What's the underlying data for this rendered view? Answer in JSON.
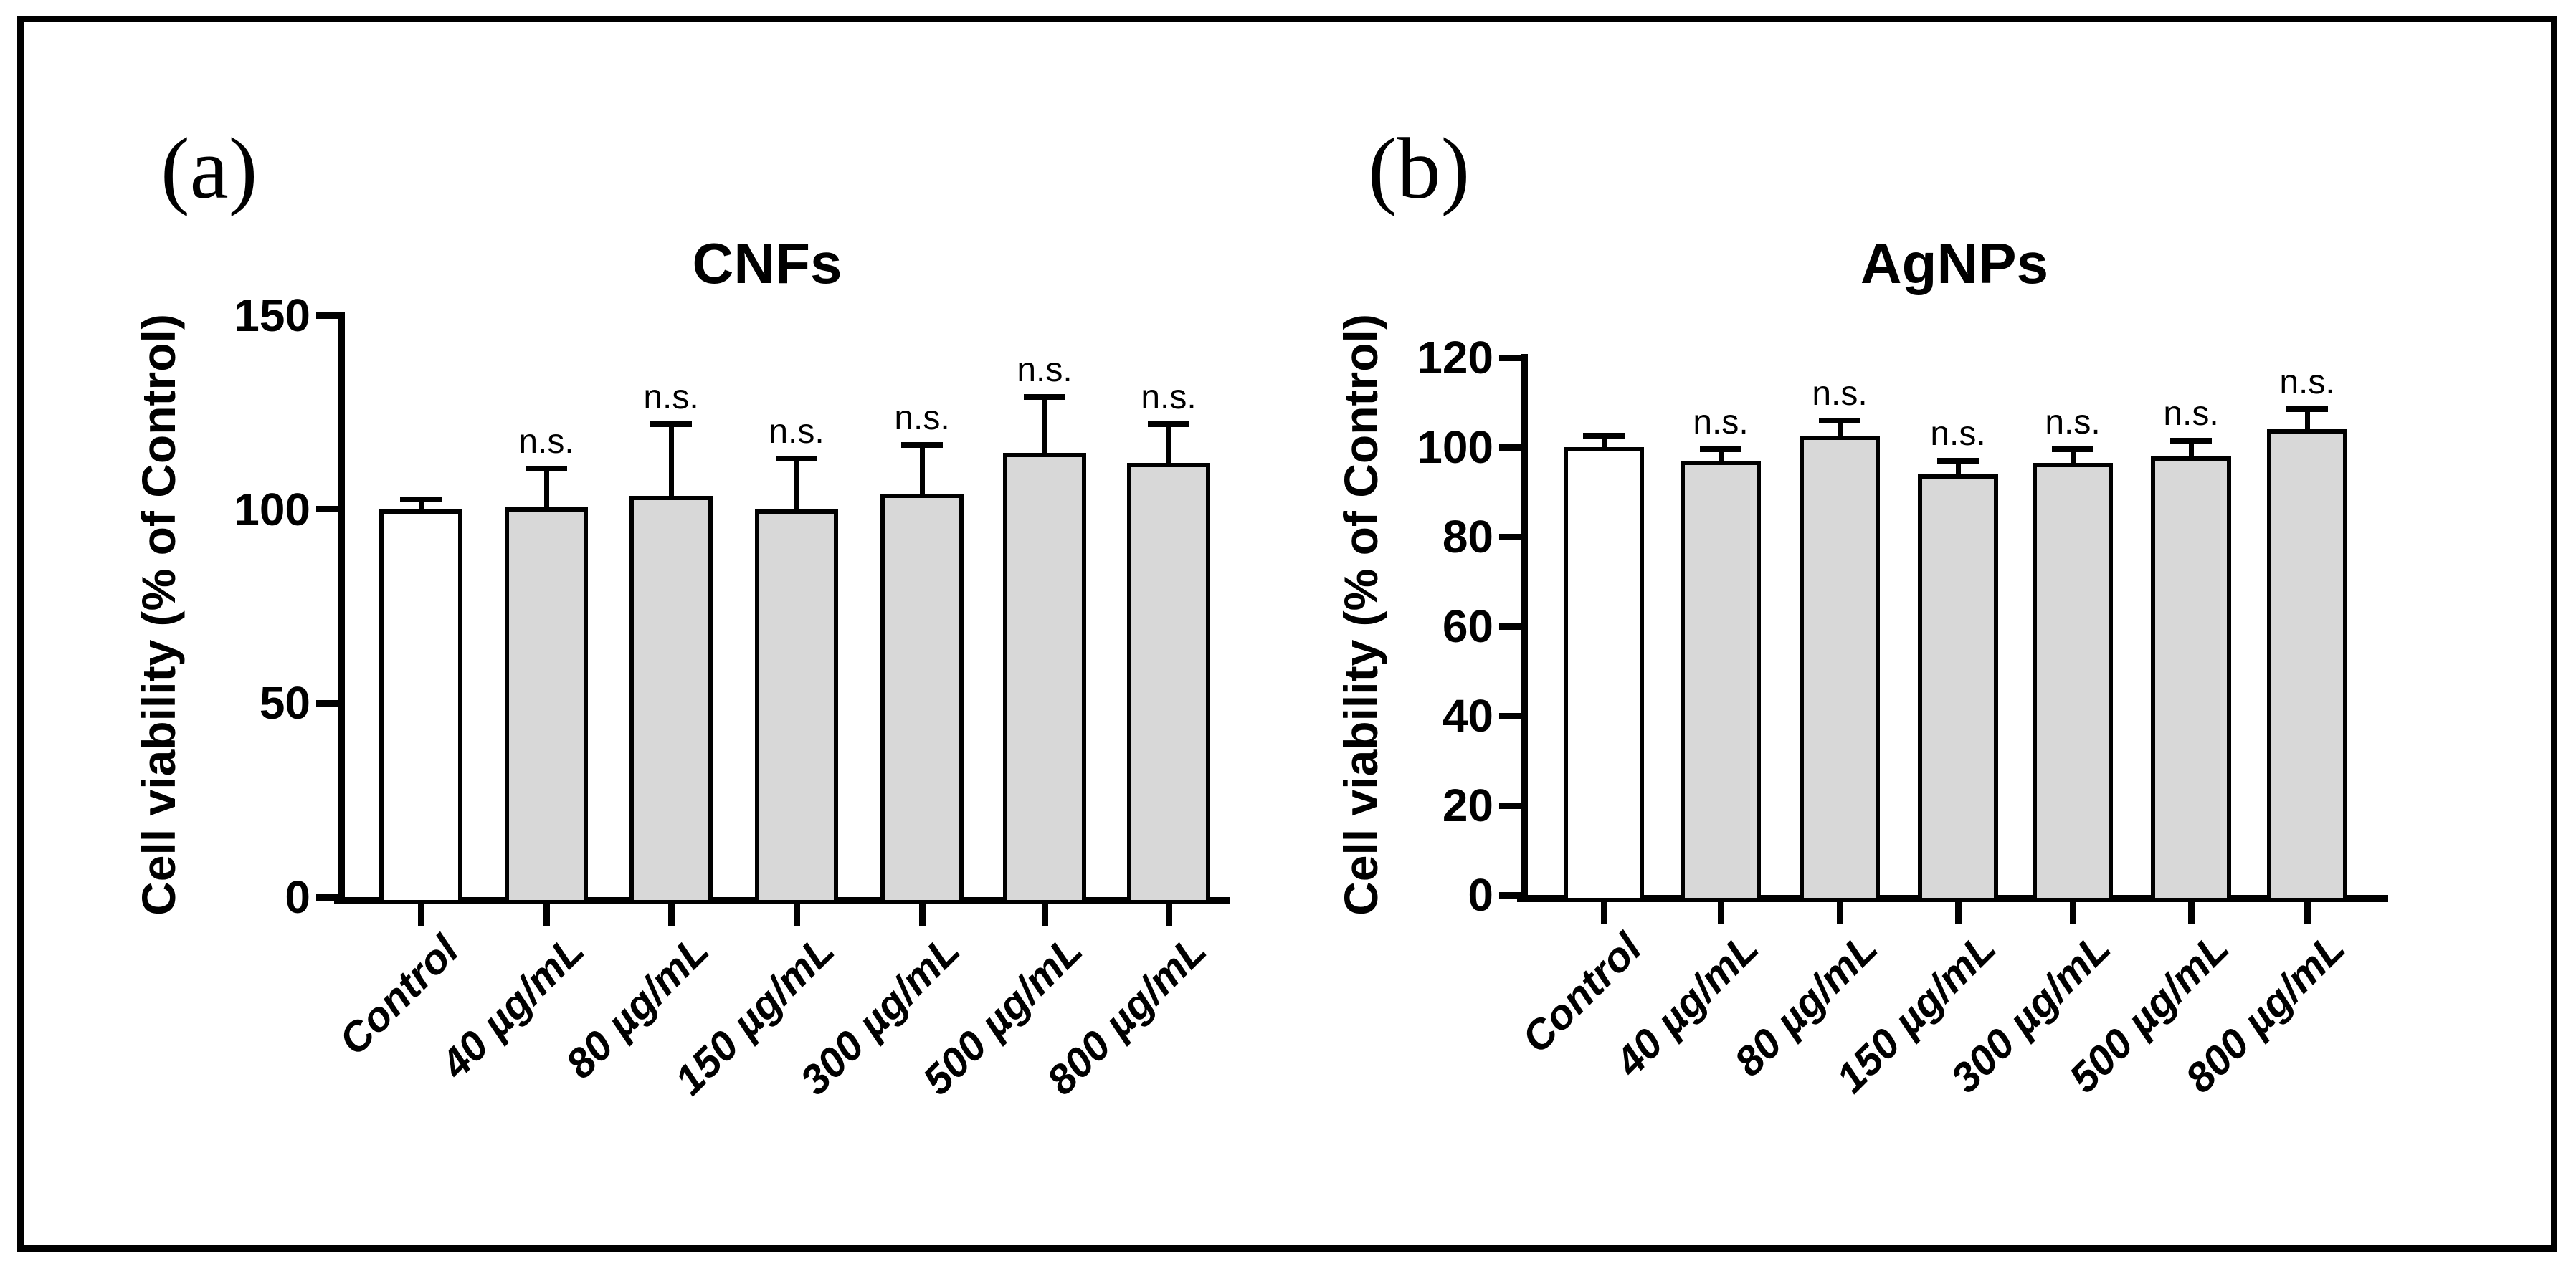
{
  "figure": {
    "background": "#ffffff",
    "border_color": "#000000",
    "ink_color": "#000000"
  },
  "chart_data": [
    {
      "type": "bar",
      "panel_label": "(a)",
      "title": "CNFs",
      "ylabel": "Cell viability (% of Control)",
      "xlabel": "",
      "categories": [
        "Control",
        "40 µg/mL",
        "80 µg/mL",
        "150 µg/mL",
        "300 µg/mL",
        "500 µg/mL",
        "800 µg/mL"
      ],
      "values": [
        100,
        100.5,
        103.5,
        100,
        104,
        114.5,
        112
      ],
      "errors_plus": [
        2.5,
        10,
        18.5,
        13,
        12.5,
        14.5,
        10
      ],
      "annotations": [
        "",
        "n.s.",
        "n.s.",
        "n.s.",
        "n.s.",
        "n.s.",
        "n.s."
      ],
      "yticks": [
        0,
        50,
        100,
        150
      ],
      "ylim": [
        0,
        150
      ],
      "grid": false,
      "legend": "none",
      "bar_fills": [
        "#ffffff",
        "#d8d8d8",
        "#d8d8d8",
        "#d8d8d8",
        "#d8d8d8",
        "#d8d8d8",
        "#d8d8d8"
      ],
      "bar_edge_color": "#000000"
    },
    {
      "type": "bar",
      "panel_label": "(b)",
      "title": "AgNPs",
      "ylabel": "Cell viability (% of Control)",
      "xlabel": "",
      "categories": [
        "Control",
        "40 µg/mL",
        "80 µg/mL",
        "150 µg/mL",
        "300 µg/mL",
        "500 µg/mL",
        "800 µg/mL"
      ],
      "values": [
        100,
        97,
        102.5,
        94,
        96.5,
        98,
        104
      ],
      "errors_plus": [
        2.5,
        2.5,
        3.5,
        3,
        3,
        3.5,
        4.5
      ],
      "annotations": [
        "",
        "n.s.",
        "n.s.",
        "n.s.",
        "n.s.",
        "n.s.",
        "n.s."
      ],
      "yticks": [
        0,
        20,
        40,
        60,
        80,
        100,
        120
      ],
      "ylim": [
        0,
        120
      ],
      "grid": false,
      "legend": "none",
      "bar_fills": [
        "#ffffff",
        "#d8d8d8",
        "#d8d8d8",
        "#d8d8d8",
        "#d8d8d8",
        "#d8d8d8",
        "#d8d8d8"
      ],
      "bar_edge_color": "#000000"
    }
  ]
}
